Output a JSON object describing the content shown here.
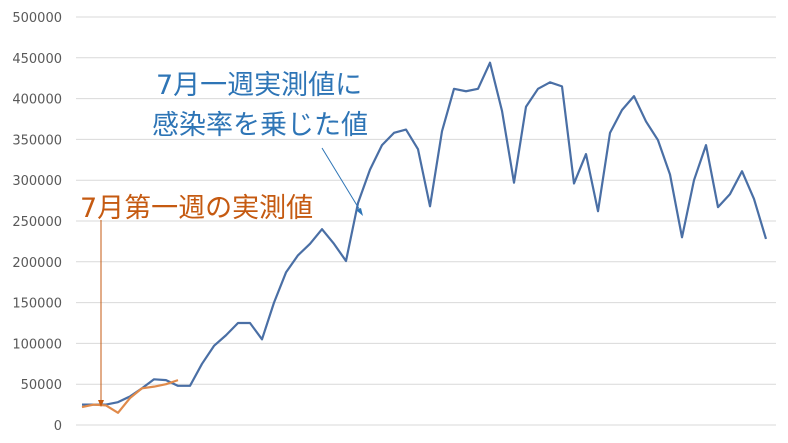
{
  "chart_data": {
    "type": "line",
    "title": "",
    "xlabel": "",
    "ylabel": "",
    "ylim": [
      0,
      500000
    ],
    "yticks": [
      "0",
      "50000",
      "100000",
      "150000",
      "200000",
      "250000",
      "300000",
      "350000",
      "400000",
      "450000",
      "500000"
    ],
    "grid": true,
    "legend": "none",
    "series": [
      {
        "color": "#4a6fa5",
        "values": [
          25000,
          25000,
          25000,
          28000,
          35000,
          45000,
          56000,
          55000,
          48000,
          48000,
          75000,
          97000,
          110000,
          125000,
          125000,
          105000,
          150000,
          187000,
          208000,
          222000,
          240000,
          222000,
          201000,
          272000,
          313000,
          343000,
          358000,
          362000,
          338000,
          268000,
          360000,
          412000,
          409000,
          412000,
          444000,
          385000,
          297000,
          390000,
          412000,
          420000,
          415000,
          296000,
          332000,
          262000,
          358000,
          386000,
          403000,
          372000,
          349000,
          307000,
          230000,
          300000,
          343000,
          267000,
          283000,
          311000,
          277000,
          228000
        ]
      },
      {
        "color": "#e08a4a",
        "values": [
          22000,
          25000,
          24000,
          15000,
          33000,
          45000,
          47000,
          50000,
          55000
        ]
      }
    ],
    "annotations": [
      {
        "lines": [
          "7月一週実測値に",
          "感染率を乗じた値"
        ],
        "color": "#2e75b6"
      },
      {
        "lines": [
          "7月第一週の実測値"
        ],
        "color": "#c55a11"
      }
    ]
  }
}
